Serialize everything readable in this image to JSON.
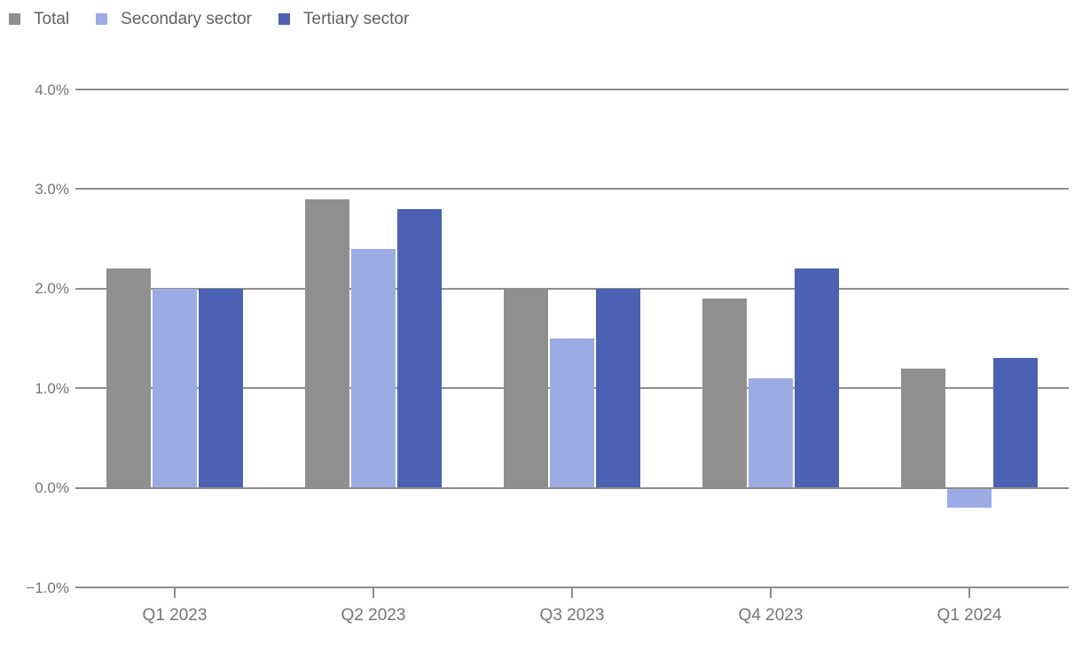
{
  "chart_data": {
    "type": "bar",
    "title": "",
    "categories": [
      "Q1 2023",
      "Q2 2023",
      "Q3 2023",
      "Q4 2023",
      "Q1 2024"
    ],
    "series": [
      {
        "name": "Total",
        "color": "#8f8f8f",
        "values": [
          2.2,
          2.9,
          2.0,
          1.9,
          1.2
        ]
      },
      {
        "name": "Secondary sector",
        "color": "#9dabe5",
        "values": [
          2.0,
          2.4,
          1.5,
          1.1,
          -0.2
        ]
      },
      {
        "name": "Tertiary sector",
        "color": "#4b62b2",
        "values": [
          2.0,
          2.8,
          2.0,
          2.2,
          1.3
        ]
      }
    ],
    "y_axis": {
      "unit": "%",
      "ylim": [
        -1,
        4
      ],
      "tick_values": [
        4,
        3,
        2,
        1,
        0,
        -1
      ],
      "tick_labels": [
        "4.0%",
        "3.0%",
        "2.0%",
        "1.0%",
        "0.0%",
        "−1.0%"
      ]
    },
    "grid": true,
    "legend_position": "top-left",
    "colors": {
      "gridline": "#8d8d8d",
      "axis_text": "#757575",
      "legend_text": "#616161",
      "background": "#ffffff"
    }
  }
}
